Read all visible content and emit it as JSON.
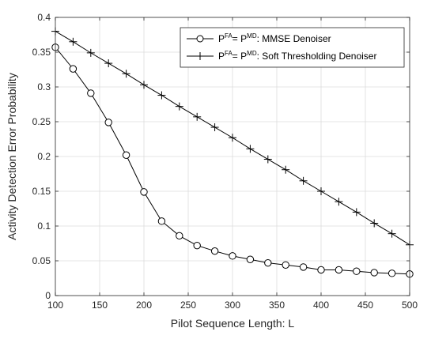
{
  "chart_data": {
    "type": "line",
    "xlabel": "Pilot Sequence Length:  L",
    "ylabel": "Activity Detection Error Probability",
    "xlim": [
      100,
      500
    ],
    "ylim": [
      0,
      0.4
    ],
    "xticks": [
      "100",
      "150",
      "200",
      "250",
      "300",
      "350",
      "400",
      "450",
      "500"
    ],
    "yticks": [
      "0",
      "0.05",
      "0.1",
      "0.15",
      "0.2",
      "0.25",
      "0.3",
      "0.35",
      "0.4"
    ],
    "grid": true,
    "legend_position": "top-right",
    "x": [
      100,
      120,
      140,
      160,
      180,
      200,
      220,
      240,
      260,
      280,
      300,
      320,
      340,
      360,
      380,
      400,
      420,
      440,
      460,
      480,
      500
    ],
    "series": [
      {
        "marker": "circle",
        "color": "#000000",
        "legend": {
          "p": "P",
          "sup1": "FA",
          "eq": "= ",
          "p2": "P",
          "sup2": "MD",
          "text": ": MMSE Denoiser"
        },
        "values": [
          0.357,
          0.326,
          0.291,
          0.249,
          0.202,
          0.149,
          0.107,
          0.086,
          0.072,
          0.064,
          0.057,
          0.052,
          0.047,
          0.044,
          0.041,
          0.037,
          0.037,
          0.035,
          0.033,
          0.032,
          0.031
        ]
      },
      {
        "marker": "plus",
        "color": "#000000",
        "legend": {
          "p": "P",
          "sup1": "FA",
          "eq": "= ",
          "p2": "P",
          "sup2": "MD",
          "text": ": Soft Thresholding Denoiser"
        },
        "values": [
          0.38,
          0.365,
          0.349,
          0.334,
          0.319,
          0.303,
          0.288,
          0.272,
          0.257,
          0.242,
          0.227,
          0.211,
          0.196,
          0.181,
          0.165,
          0.15,
          0.135,
          0.12,
          0.104,
          0.089,
          0.073
        ]
      }
    ]
  }
}
